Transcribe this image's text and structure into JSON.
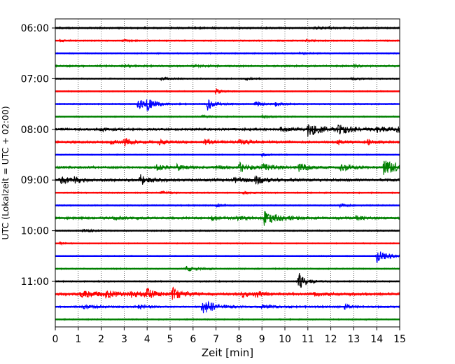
{
  "chart_data": {
    "type": "line",
    "title": "",
    "xlabel": "Zeit  [min]",
    "ylabel": "UTC (Lokalzeit = UTC + 02:00)",
    "xlim": [
      0,
      15
    ],
    "x_ticks": [
      "0",
      "1",
      "2",
      "3",
      "4",
      "5",
      "6",
      "7",
      "8",
      "9",
      "10",
      "11",
      "12",
      "13",
      "14",
      "15"
    ],
    "y_ticks": [
      {
        "label": "06:00",
        "trace": 0
      },
      {
        "label": "07:00",
        "trace": 4
      },
      {
        "label": "08:00",
        "trace": 8
      },
      {
        "label": "09:00",
        "trace": 12
      },
      {
        "label": "10:00",
        "trace": 16
      },
      {
        "label": "11:00",
        "trace": 20
      }
    ],
    "grid": "vertical-dotted",
    "trace_minutes": 15,
    "colors": [
      "#000000",
      "#ff0000",
      "#0000ff",
      "#008000"
    ],
    "traces": [
      {
        "start": "06:00",
        "color_index": 0,
        "noise": 0.8,
        "events": [
          [
            11.3,
            1.2,
            0.4
          ]
        ]
      },
      {
        "start": "06:15",
        "color_index": 1,
        "noise": 0.6,
        "events": [
          [
            0.2,
            1.0,
            0.2
          ],
          [
            2.9,
            1.0,
            0.3
          ],
          [
            10.9,
            1.0,
            0.3
          ]
        ]
      },
      {
        "start": "06:30",
        "color_index": 2,
        "noise": 0.6,
        "events": [
          [
            10.6,
            1.0,
            0.3
          ]
        ]
      },
      {
        "start": "06:45",
        "color_index": 3,
        "noise": 0.8,
        "events": [
          [
            3.0,
            1.0,
            0.3
          ],
          [
            6.0,
            1.0,
            0.3
          ],
          [
            13.0,
            1.2,
            0.3
          ]
        ]
      },
      {
        "start": "07:00",
        "color_index": 0,
        "noise": 0.6,
        "events": [
          [
            4.6,
            1.2,
            0.3
          ],
          [
            8.3,
            1.0,
            0.3
          ],
          [
            12.9,
            1.0,
            0.3
          ]
        ]
      },
      {
        "start": "07:15",
        "color_index": 1,
        "noise": 0.5,
        "events": [
          [
            7.0,
            3.0,
            0.2
          ]
        ]
      },
      {
        "start": "07:30",
        "color_index": 2,
        "noise": 0.6,
        "events": [
          [
            3.6,
            5.0,
            0.3
          ],
          [
            4.0,
            5.0,
            0.35
          ],
          [
            6.6,
            6.0,
            0.3
          ],
          [
            8.7,
            2.0,
            0.3
          ],
          [
            9.6,
            1.5,
            0.3
          ]
        ]
      },
      {
        "start": "07:45",
        "color_index": 3,
        "noise": 0.6,
        "events": [
          [
            6.4,
            1.2,
            0.3
          ],
          [
            9.0,
            1.2,
            0.3
          ]
        ]
      },
      {
        "start": "08:00",
        "color_index": 0,
        "noise": 1.0,
        "events": [
          [
            2.0,
            1.5,
            0.3
          ],
          [
            9.8,
            2.0,
            0.5
          ],
          [
            11.0,
            6.0,
            0.6
          ],
          [
            12.3,
            3.0,
            0.8
          ],
          [
            14.0,
            2.0,
            0.6
          ],
          [
            14.9,
            3.0,
            0.2
          ]
        ]
      },
      {
        "start": "08:15",
        "color_index": 1,
        "noise": 1.0,
        "events": [
          [
            3.0,
            3.5,
            0.3
          ],
          [
            2.4,
            2.0,
            0.3
          ],
          [
            4.5,
            2.0,
            0.4
          ],
          [
            6.5,
            2.0,
            0.4
          ],
          [
            8.0,
            2.0,
            0.5
          ],
          [
            12.3,
            2.5,
            0.2
          ],
          [
            13.6,
            2.0,
            0.4
          ]
        ]
      },
      {
        "start": "08:30",
        "color_index": 2,
        "noise": 0.5,
        "events": [
          [
            9.0,
            1.2,
            0.3
          ]
        ]
      },
      {
        "start": "08:45",
        "color_index": 3,
        "noise": 1.0,
        "events": [
          [
            4.4,
            2.5,
            0.4
          ],
          [
            5.3,
            2.5,
            0.4
          ],
          [
            7.0,
            1.5,
            0.5
          ],
          [
            8.0,
            4.0,
            0.5
          ],
          [
            9.0,
            2.5,
            0.5
          ],
          [
            10.6,
            3.5,
            0.4
          ],
          [
            12.4,
            3.5,
            0.4
          ],
          [
            14.3,
            6.0,
            0.7
          ]
        ]
      },
      {
        "start": "09:00",
        "color_index": 0,
        "noise": 1.2,
        "events": [
          [
            0.2,
            3.0,
            0.5
          ],
          [
            0.8,
            2.0,
            0.3
          ],
          [
            3.7,
            5.0,
            0.3
          ],
          [
            7.8,
            2.0,
            0.5
          ],
          [
            8.7,
            3.0,
            0.4
          ]
        ]
      },
      {
        "start": "09:15",
        "color_index": 1,
        "noise": 0.6,
        "events": [
          [
            4.6,
            1.0,
            0.3
          ],
          [
            8.2,
            1.0,
            0.3
          ]
        ]
      },
      {
        "start": "09:30",
        "color_index": 2,
        "noise": 0.6,
        "events": [
          [
            7.0,
            1.5,
            0.3
          ],
          [
            12.4,
            1.5,
            0.3
          ]
        ]
      },
      {
        "start": "09:45",
        "color_index": 3,
        "noise": 1.0,
        "events": [
          [
            2.5,
            1.5,
            0.4
          ],
          [
            6.8,
            1.8,
            0.4
          ],
          [
            7.9,
            2.0,
            0.4
          ],
          [
            9.1,
            6.0,
            0.6
          ],
          [
            13.1,
            2.0,
            0.3
          ]
        ]
      },
      {
        "start": "10:00",
        "color_index": 0,
        "noise": 0.6,
        "events": [
          [
            1.2,
            1.2,
            0.4
          ]
        ]
      },
      {
        "start": "10:15",
        "color_index": 1,
        "noise": 0.5,
        "events": [
          [
            0.2,
            1.0,
            0.2
          ]
        ]
      },
      {
        "start": "10:30",
        "color_index": 2,
        "noise": 0.5,
        "events": [
          [
            14.0,
            6.0,
            0.4
          ]
        ]
      },
      {
        "start": "10:45",
        "color_index": 3,
        "noise": 0.6,
        "events": [
          [
            5.7,
            2.0,
            0.5
          ]
        ]
      },
      {
        "start": "11:00",
        "color_index": 0,
        "noise": 0.6,
        "events": [
          [
            10.6,
            8.0,
            0.3
          ]
        ]
      },
      {
        "start": "11:15",
        "color_index": 1,
        "noise": 1.2,
        "events": [
          [
            1.1,
            2.5,
            0.8
          ],
          [
            2.2,
            2.5,
            0.5
          ],
          [
            3.3,
            2.5,
            0.4
          ],
          [
            3.9,
            2.0,
            0.3
          ],
          [
            4.0,
            3.0,
            0.4
          ],
          [
            5.1,
            6.0,
            0.4
          ],
          [
            8.1,
            2.5,
            0.4
          ],
          [
            8.7,
            2.0,
            0.3
          ],
          [
            11.3,
            1.5,
            0.4
          ]
        ]
      },
      {
        "start": "11:30",
        "color_index": 2,
        "noise": 0.8,
        "events": [
          [
            1.2,
            1.5,
            0.5
          ],
          [
            3.6,
            2.0,
            0.3
          ],
          [
            6.4,
            7.0,
            0.5
          ],
          [
            9.0,
            1.5,
            0.6
          ],
          [
            12.6,
            3.0,
            0.2
          ]
        ]
      },
      {
        "start": "11:45",
        "color_index": 3,
        "noise": 0.6,
        "events": []
      }
    ]
  }
}
